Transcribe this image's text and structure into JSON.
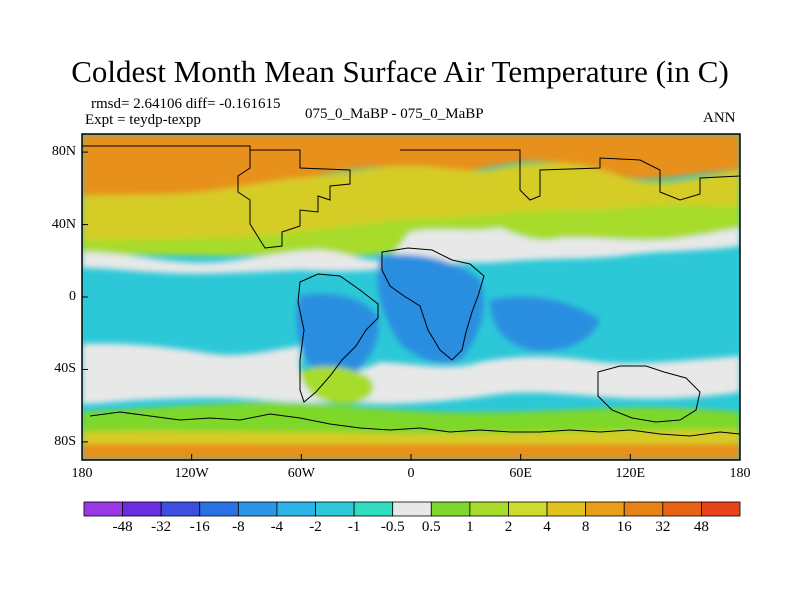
{
  "title": "Coldest Month Mean Surface Air Temperature (in C)",
  "stats": {
    "rmsd_diff": "rmsd= 2.64106 diff= -0.161615",
    "expt": "Expt = teydp-texpp",
    "case": "075_0_MaBP - 075_0_MaBP",
    "season": "ANN"
  },
  "map": {
    "projection": "cylindrical equidistant",
    "lon_range": [
      -180,
      180
    ],
    "lat_range": [
      -90,
      90
    ],
    "lat_ticks": [
      {
        "value": 80,
        "label": "80N"
      },
      {
        "value": 40,
        "label": "40N"
      },
      {
        "value": 0,
        "label": "0"
      },
      {
        "value": -40,
        "label": "40S"
      },
      {
        "value": -80,
        "label": "80S"
      }
    ],
    "lon_ticks": [
      {
        "value": -180,
        "label": "180"
      },
      {
        "value": -120,
        "label": "120W"
      },
      {
        "value": -60,
        "label": "60W"
      },
      {
        "value": 0,
        "label": "0"
      },
      {
        "value": 60,
        "label": "60E"
      },
      {
        "value": 120,
        "label": "120E"
      },
      {
        "value": 180,
        "label": "180"
      }
    ]
  },
  "legend": {
    "colors": [
      "#9b38e8",
      "#6a2ee0",
      "#3c4fe0",
      "#2a72e4",
      "#2b96e6",
      "#2cb4e6",
      "#2ccad8",
      "#30dcc0",
      "#e8e8e8",
      "#7ed82c",
      "#a8dc2c",
      "#cddc2c",
      "#e2c21e",
      "#e8a01a",
      "#e88214",
      "#e86414",
      "#e8441a"
    ],
    "labels": [
      "-48",
      "-32",
      "-16",
      "-8",
      "-4",
      "-2",
      "-1",
      "-0.5",
      "0.5",
      "1",
      "2",
      "4",
      "8",
      "16",
      "32",
      "48"
    ]
  },
  "colors": {
    "ocean_neutral": "#e8e8e8",
    "tropical_warm": "#2cc8d8",
    "cold_blue": "#2a8ee0",
    "arctic_orange": "#e8901a",
    "boreal_yellow": "#d6cc28",
    "midlat_green": "#a8dc2c",
    "antarctic_green": "#7ed82c",
    "coastline": "#000000"
  }
}
